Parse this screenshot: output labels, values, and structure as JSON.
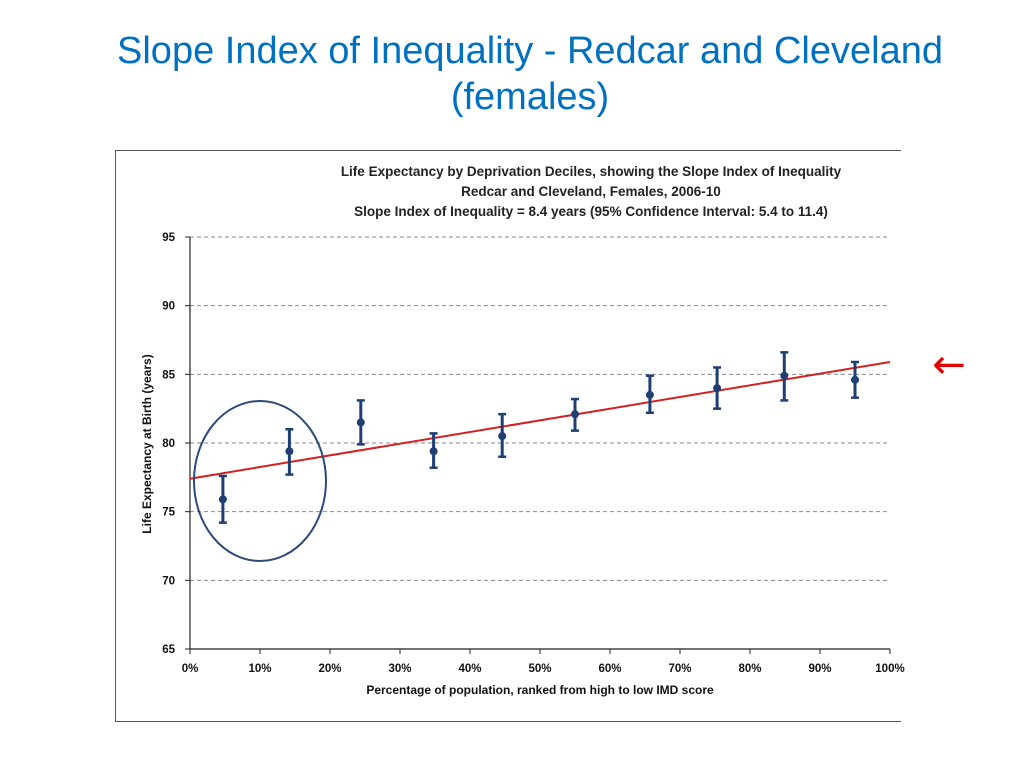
{
  "slide": {
    "title_line1": "Slope Index of Inequality - Redcar and Cleveland",
    "title_line2": "(females)"
  },
  "colors": {
    "title": "#0070c0",
    "points": "#1f3f74",
    "trend": "#d42020",
    "circle": "#2e4a7a",
    "arrow": "#e00000",
    "grid": "#8a8a8a"
  },
  "annotations": {
    "arrow_glyph": "←",
    "circle_highlight": "first two deciles"
  },
  "chart_data": {
    "type": "scatter",
    "title_lines": [
      "Life Expectancy by Deprivation Deciles, showing the Slope Index of Inequality",
      "Redcar and Cleveland, Females, 2006-10",
      "Slope Index of Inequality = 8.4 years (95% Confidence Interval: 5.4 to 11.4)"
    ],
    "xlabel": "Percentage of population, ranked from high to low IMD score",
    "ylabel": "Life Expectancy at Birth (years)",
    "xlim": [
      0,
      100
    ],
    "ylim": [
      65,
      95
    ],
    "x_ticks": [
      "0%",
      "10%",
      "20%",
      "30%",
      "40%",
      "50%",
      "60%",
      "70%",
      "80%",
      "90%",
      "100%"
    ],
    "y_ticks": [
      65,
      70,
      75,
      80,
      85,
      90,
      95
    ],
    "grid": "horizontal dashed",
    "points": [
      {
        "x": 4.7,
        "y": 75.9,
        "lo": 74.2,
        "hi": 77.6
      },
      {
        "x": 14.2,
        "y": 79.4,
        "lo": 77.7,
        "hi": 81.0
      },
      {
        "x": 24.4,
        "y": 81.5,
        "lo": 79.9,
        "hi": 83.1
      },
      {
        "x": 34.8,
        "y": 79.4,
        "lo": 78.2,
        "hi": 80.7
      },
      {
        "x": 44.6,
        "y": 80.5,
        "lo": 79.0,
        "hi": 82.1
      },
      {
        "x": 55.0,
        "y": 82.1,
        "lo": 80.9,
        "hi": 83.2
      },
      {
        "x": 65.7,
        "y": 83.5,
        "lo": 82.2,
        "hi": 84.9
      },
      {
        "x": 75.3,
        "y": 84.0,
        "lo": 82.5,
        "hi": 85.5
      },
      {
        "x": 84.9,
        "y": 84.9,
        "lo": 83.1,
        "hi": 86.6
      },
      {
        "x": 95.0,
        "y": 84.6,
        "lo": 83.3,
        "hi": 85.9
      }
    ],
    "trendline": {
      "x0": 0,
      "y0": 77.4,
      "x1": 100,
      "y1": 85.9
    }
  }
}
